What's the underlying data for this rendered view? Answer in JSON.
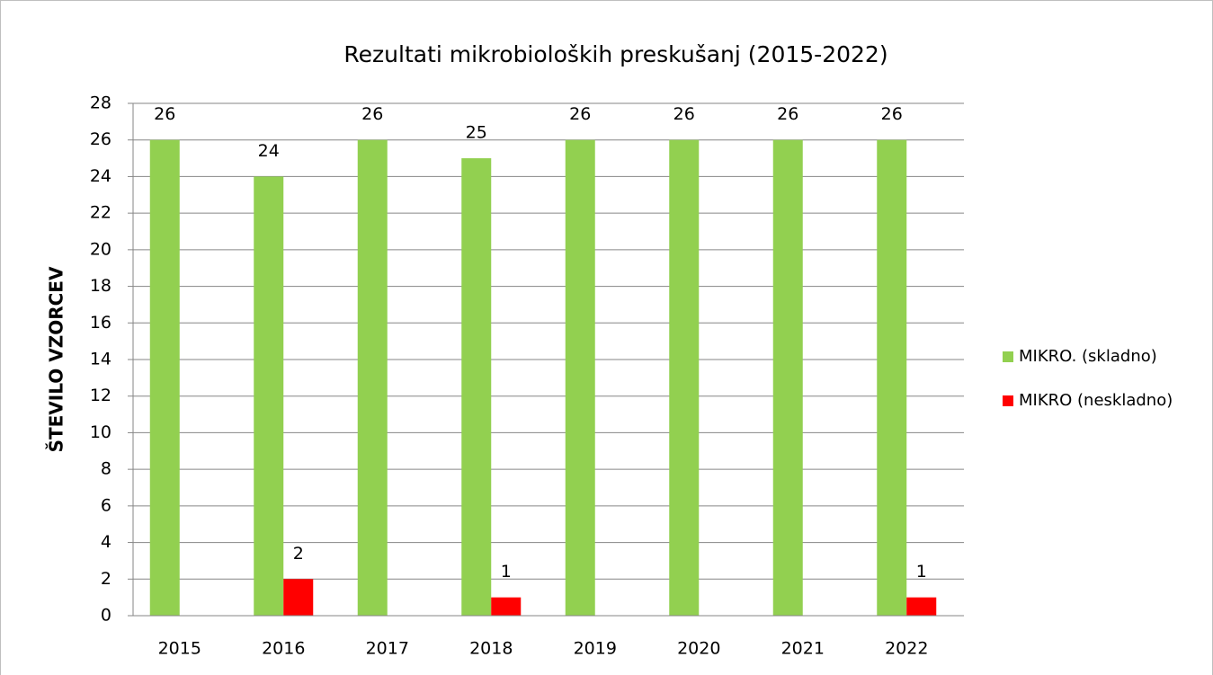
{
  "chart_data": {
    "type": "bar",
    "title": "Rezultati mikrobioloških  preskušanj (2015-2022)",
    "y_label": "ŠTEVILO VZORCEV",
    "categories": [
      "2015",
      "2016",
      "2017",
      "2018",
      "2019",
      "2020",
      "2021",
      "2022"
    ],
    "series": [
      {
        "name": "MIKRO. (skladno)",
        "color": "#92d050",
        "values": [
          26,
          24,
          26,
          25,
          26,
          26,
          26,
          26
        ]
      },
      {
        "name": "MIKRO (neskladno)",
        "color": "#ff0000",
        "values": [
          null,
          2,
          null,
          1,
          null,
          null,
          null,
          1
        ]
      }
    ],
    "ylim": [
      0,
      28
    ],
    "yticks": [
      0,
      2,
      4,
      6,
      8,
      10,
      12,
      14,
      16,
      18,
      20,
      22,
      24,
      26,
      28
    ],
    "grid": true,
    "legend": "right"
  }
}
